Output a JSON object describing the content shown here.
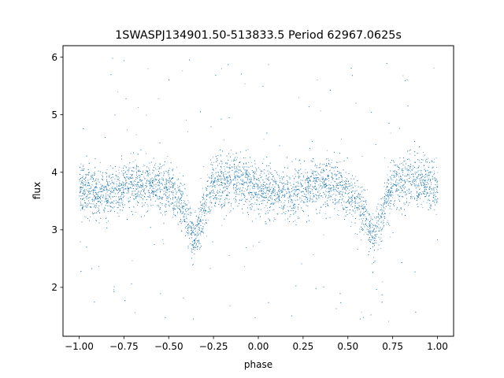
{
  "chart_data": {
    "type": "scatter",
    "title": "1SWASPJ134901.50-513833.5 Period 62967.0625s",
    "xlabel": "phase",
    "ylabel": "flux",
    "xlim": [
      -1.09,
      1.09
    ],
    "ylim": [
      1.15,
      6.2
    ],
    "xticks": [
      -1.0,
      -0.75,
      -0.5,
      -0.25,
      0.0,
      0.25,
      0.5,
      0.75,
      1.0
    ],
    "xtick_labels": [
      "−1.00",
      "−0.75",
      "−0.50",
      "−0.25",
      "0.00",
      "0.25",
      "0.50",
      "0.75",
      "1.00"
    ],
    "yticks": [
      2,
      3,
      4,
      5,
      6
    ],
    "ytick_labels": [
      "2",
      "3",
      "4",
      "5",
      "6"
    ],
    "grid": false,
    "series": [
      {
        "marker_color": "#1f77b4",
        "phase_range": [
          -1.0,
          1.0
        ],
        "model_profile": {
          "description_points_x": [
            -1.0,
            -0.85,
            -0.7,
            -0.55,
            -0.45,
            -0.4,
            -0.36,
            -0.32,
            -0.25,
            -0.1,
            0.0,
            0.1,
            0.2,
            0.3,
            0.45,
            0.55,
            0.6,
            0.64,
            0.68,
            0.75,
            0.9,
            1.0
          ],
          "description_points_y": [
            3.72,
            3.6,
            3.82,
            3.78,
            3.55,
            3.2,
            2.8,
            3.2,
            3.82,
            3.85,
            3.72,
            3.6,
            3.6,
            3.82,
            3.78,
            3.5,
            3.2,
            2.8,
            3.2,
            3.82,
            3.85,
            3.72
          ]
        },
        "scatter_spread": 0.22,
        "outlier_range": [
          1.4,
          6.0
        ]
      }
    ]
  }
}
